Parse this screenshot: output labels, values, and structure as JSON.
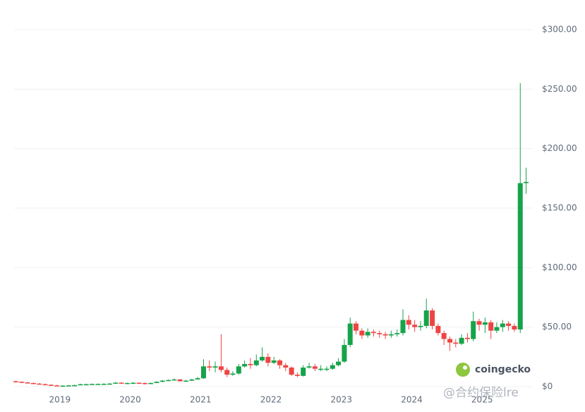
{
  "chart_data": {
    "type": "candlestick",
    "x": [
      2018.375,
      2018.458,
      2018.542,
      2018.625,
      2018.708,
      2018.792,
      2018.875,
      2018.958,
      2019.042,
      2019.125,
      2019.208,
      2019.292,
      2019.375,
      2019.458,
      2019.542,
      2019.625,
      2019.708,
      2019.792,
      2019.875,
      2019.958,
      2020.042,
      2020.125,
      2020.208,
      2020.292,
      2020.375,
      2020.458,
      2020.542,
      2020.625,
      2020.708,
      2020.792,
      2020.875,
      2020.958,
      2021.042,
      2021.125,
      2021.208,
      2021.292,
      2021.375,
      2021.458,
      2021.542,
      2021.625,
      2021.708,
      2021.792,
      2021.875,
      2021.958,
      2022.042,
      2022.125,
      2022.208,
      2022.292,
      2022.375,
      2022.458,
      2022.542,
      2022.625,
      2022.708,
      2022.792,
      2022.875,
      2022.958,
      2023.042,
      2023.125,
      2023.208,
      2023.292,
      2023.375,
      2023.458,
      2023.542,
      2023.625,
      2023.708,
      2023.792,
      2023.875,
      2023.958,
      2024.042,
      2024.125,
      2024.208,
      2024.292,
      2024.375,
      2024.458,
      2024.542,
      2024.625,
      2024.708,
      2024.792,
      2024.875,
      2024.958,
      2025.042,
      2025.125,
      2025.208,
      2025.292,
      2025.375,
      2025.458,
      2025.542,
      2025.625
    ],
    "open": [
      4.5,
      4,
      3.5,
      3,
      2.5,
      2,
      1.5,
      1,
      0.8,
      0.8,
      1,
      1.2,
      2,
      2,
      2.2,
      2.2,
      2.3,
      2.5,
      3.3,
      3,
      3,
      3.2,
      3,
      2.5,
      3,
      4,
      5,
      5.5,
      6,
      4.5,
      5,
      6,
      7,
      17,
      16,
      17,
      14,
      10,
      11,
      17,
      19,
      18,
      22,
      25,
      20,
      22,
      18,
      16,
      10,
      9,
      16,
      17,
      15,
      15,
      15,
      18,
      21,
      35,
      53,
      47,
      43,
      46,
      45,
      44,
      43,
      44,
      45,
      56,
      52,
      50,
      51,
      64,
      51,
      45,
      40,
      37,
      36,
      41,
      40,
      55,
      52,
      54,
      47,
      50,
      53,
      51,
      48,
      171
    ],
    "high": [
      5,
      4.5,
      4,
      3.5,
      3,
      2.5,
      2,
      1.5,
      1.2,
      1.3,
      1.6,
      2.4,
      2.5,
      2.6,
      2.7,
      2.8,
      3,
      3.8,
      3.6,
      3.4,
      3.8,
      3.6,
      3.4,
      3.5,
      4.5,
      5.6,
      6,
      6.8,
      6.5,
      5.6,
      6.6,
      8,
      23,
      22,
      21,
      44,
      16,
      13,
      19,
      22,
      24,
      27,
      33,
      28,
      25,
      23,
      20,
      17,
      12,
      18,
      20,
      19,
      18,
      17,
      20,
      24,
      40,
      58,
      55,
      49,
      49,
      48,
      47,
      46,
      47,
      48,
      65,
      60,
      56,
      55,
      74,
      66,
      53,
      47,
      42,
      40,
      44,
      45,
      63,
      57,
      58,
      56,
      54,
      56,
      55,
      53,
      255,
      184
    ],
    "low": [
      3.8,
      3.3,
      2.8,
      2.3,
      1.8,
      1.3,
      0.9,
      0.7,
      0.6,
      0.7,
      0.9,
      1.1,
      1.8,
      1.9,
      2,
      2.1,
      2.2,
      2.4,
      2.8,
      2.8,
      2.9,
      2.8,
      1.8,
      2.4,
      2.9,
      3.8,
      4.8,
      5.3,
      4.2,
      4.3,
      4.8,
      5.8,
      6.5,
      13,
      12,
      12,
      8,
      9,
      10,
      16,
      15,
      17,
      21,
      17,
      19,
      15,
      13,
      9,
      8,
      8.5,
      15,
      13,
      13,
      13,
      14,
      17,
      20,
      33,
      44,
      40,
      41,
      42,
      41,
      40,
      41,
      42,
      43,
      48,
      46,
      47,
      49,
      48,
      43,
      35,
      30,
      33,
      35,
      37,
      38,
      47,
      45,
      40,
      45,
      46,
      47,
      46,
      45,
      162
    ],
    "close": [
      4,
      3.5,
      3,
      2.5,
      2,
      1.5,
      1,
      0.8,
      0.8,
      1,
      1.2,
      2,
      2,
      2.2,
      2.2,
      2.3,
      2.5,
      3.3,
      3,
      3,
      3.2,
      3,
      2.5,
      3,
      4,
      5,
      5.5,
      6,
      4.5,
      5,
      6,
      7,
      17,
      16,
      17,
      14,
      10,
      11,
      17,
      19,
      18,
      22,
      25,
      20,
      22,
      18,
      16,
      10,
      9,
      16,
      17,
      15,
      15,
      15,
      18,
      21,
      35,
      53,
      47,
      43,
      46,
      45,
      44,
      43,
      44,
      45,
      56,
      52,
      50,
      51,
      64,
      51,
      45,
      40,
      37,
      36,
      41,
      40,
      55,
      52,
      54,
      47,
      50,
      53,
      51,
      48,
      171,
      172
    ],
    "up_color": "#16a34a",
    "down_color": "#ef4444",
    "xlim": [
      2018.35,
      2025.72
    ],
    "xticks": [
      2019,
      2020,
      2021,
      2022,
      2023,
      2024,
      2025
    ],
    "ylim": [
      0,
      300
    ],
    "yticks": [
      {
        "value": 0,
        "label": "$0"
      },
      {
        "value": 50,
        "label": "$50.00"
      },
      {
        "value": 100,
        "label": "$100.00"
      },
      {
        "value": 150,
        "label": "$150.00"
      },
      {
        "value": 200,
        "label": "$200.00"
      },
      {
        "value": 250,
        "label": "$250.00"
      },
      {
        "value": 300,
        "label": "$300.00"
      }
    ],
    "grid": true,
    "watermark": "coingecko",
    "overlay_text": "@合约保险lre"
  }
}
